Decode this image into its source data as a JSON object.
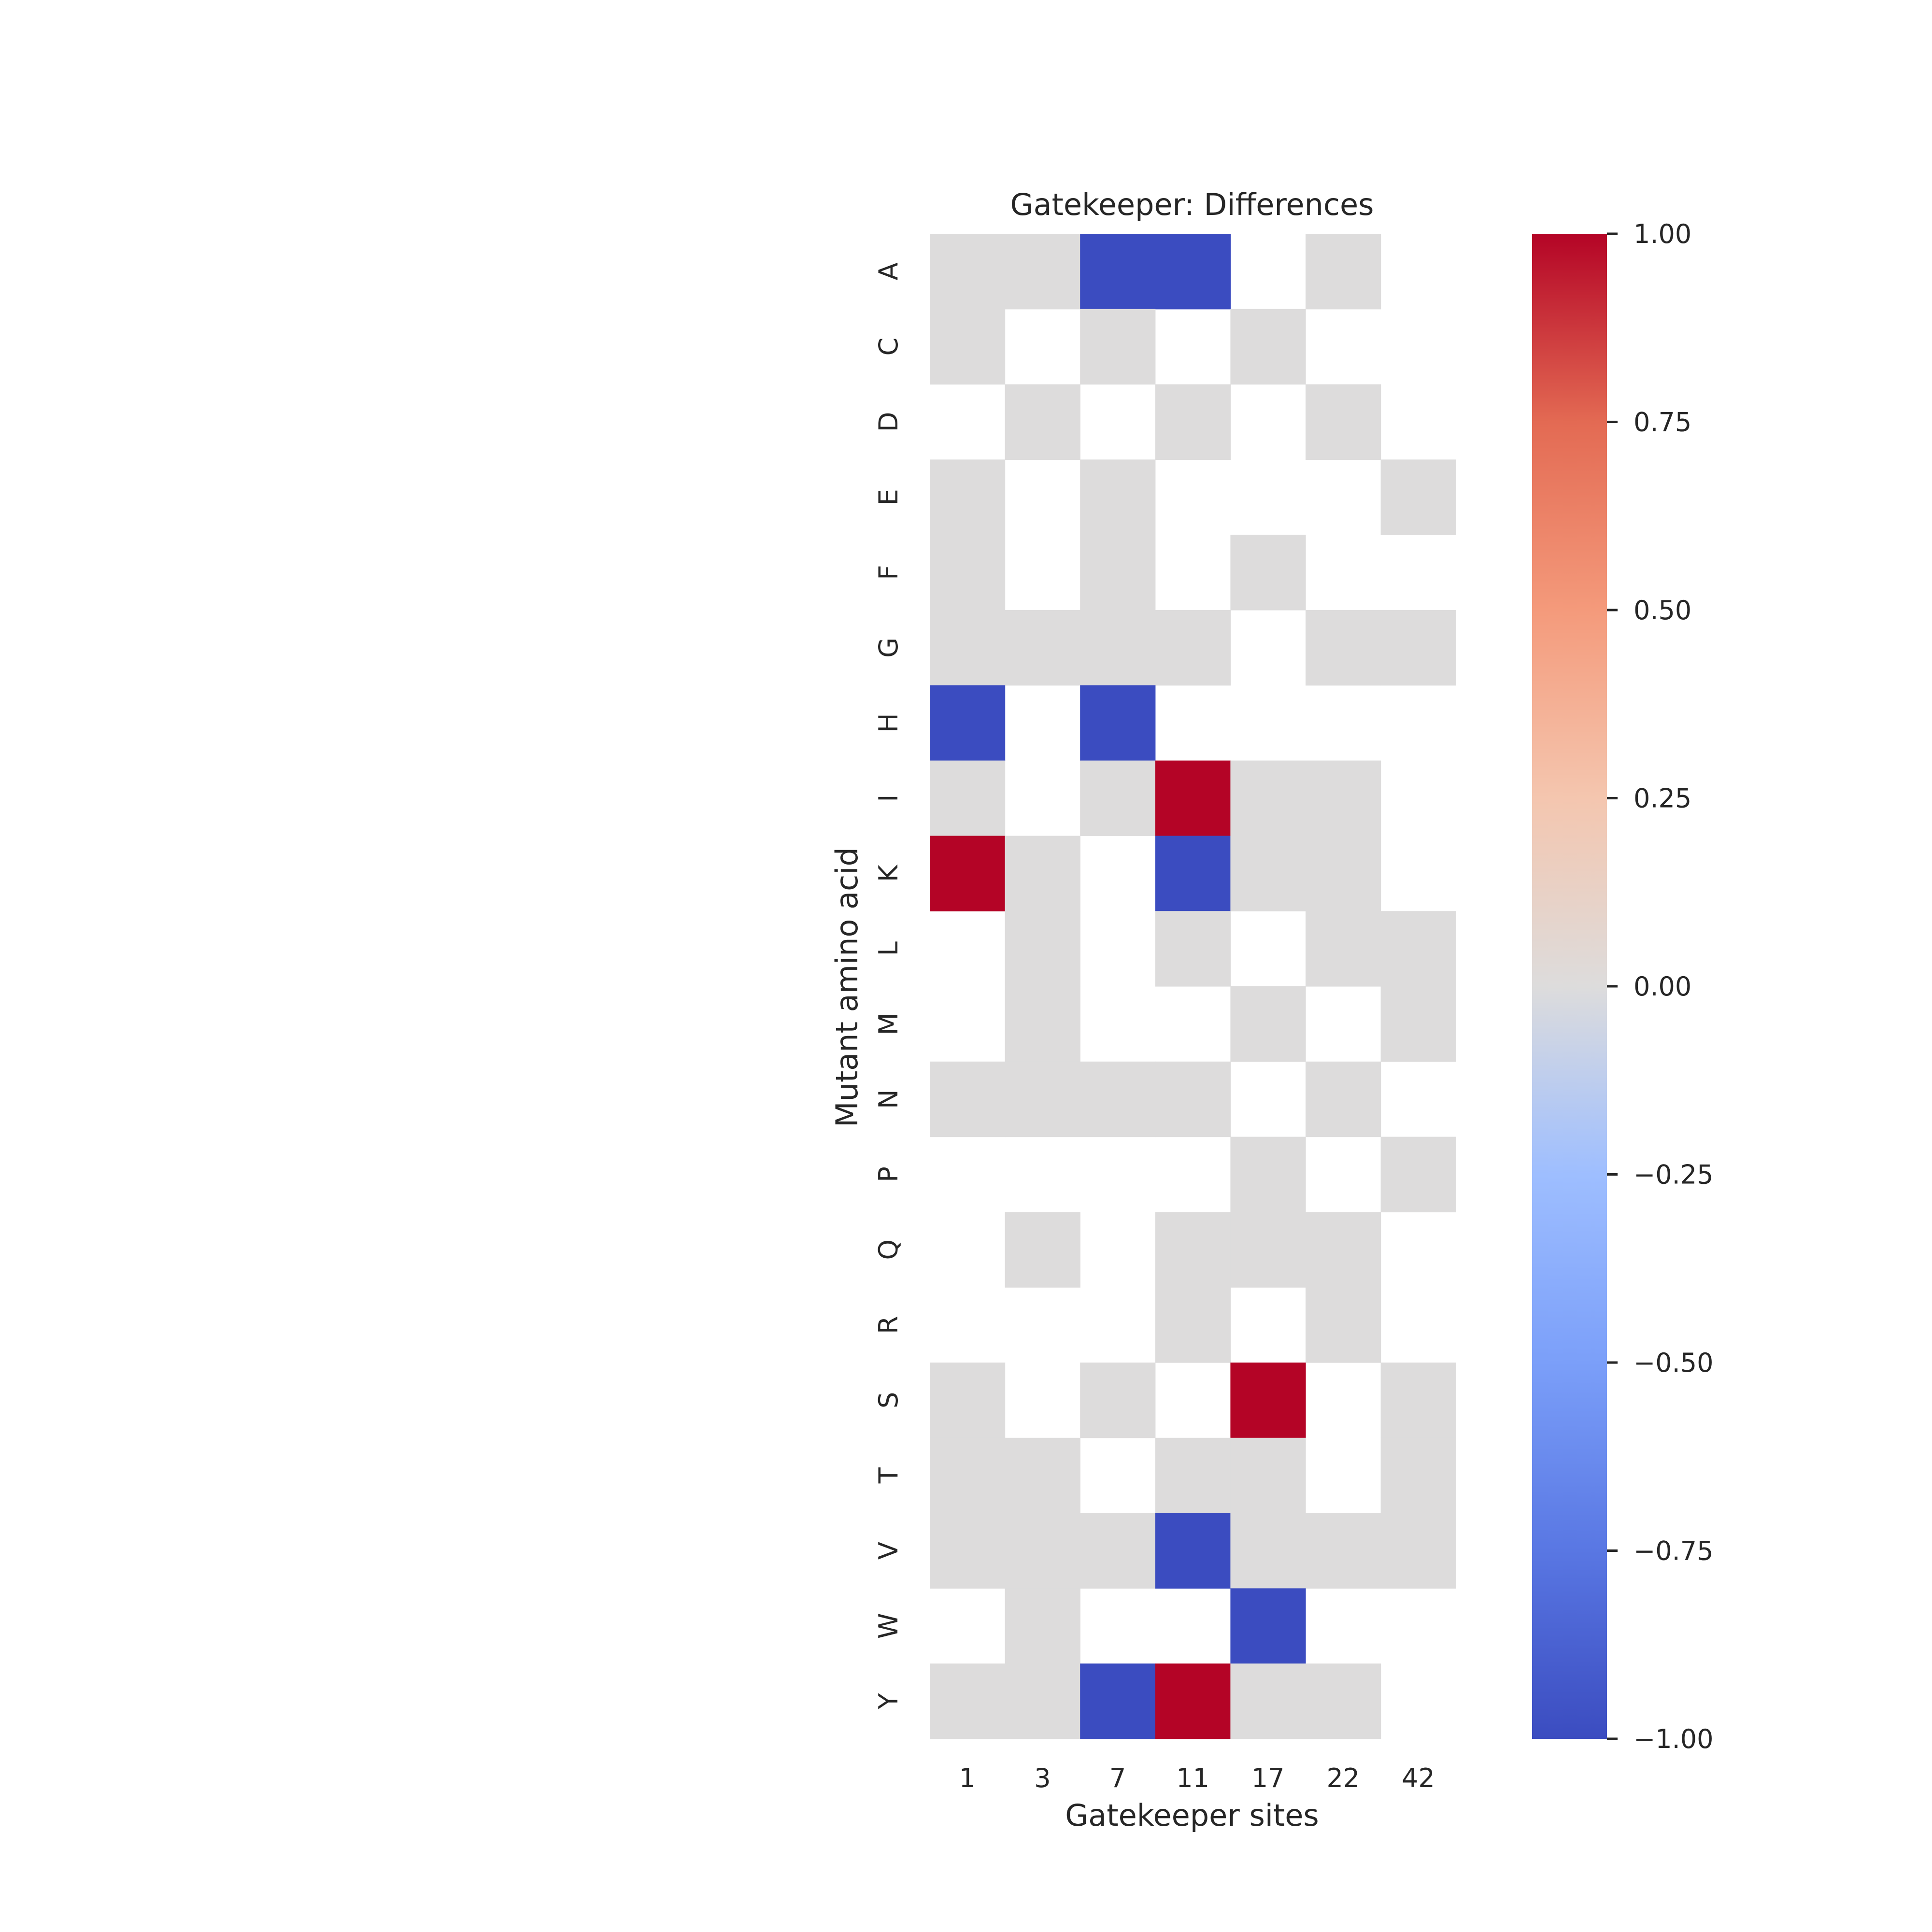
{
  "chart_data": {
    "type": "heatmap",
    "title": "Gatekeeper: Differences",
    "xlabel": "Gatekeeper sites",
    "ylabel": "Mutant amino acid",
    "x_categories": [
      "1",
      "3",
      "7",
      "11",
      "17",
      "22",
      "42"
    ],
    "y_categories": [
      "A",
      "C",
      "D",
      "E",
      "F",
      "G",
      "H",
      "I",
      "K",
      "L",
      "M",
      "N",
      "P",
      "Q",
      "R",
      "S",
      "T",
      "V",
      "W",
      "Y"
    ],
    "values": [
      [
        0,
        0,
        -1,
        -1,
        null,
        0,
        null
      ],
      [
        0,
        null,
        0,
        null,
        0,
        null,
        null
      ],
      [
        null,
        0,
        null,
        0,
        null,
        0,
        null
      ],
      [
        0,
        null,
        0,
        null,
        null,
        null,
        0
      ],
      [
        0,
        null,
        0,
        null,
        0,
        null,
        null
      ],
      [
        0,
        0,
        0,
        0,
        null,
        0,
        0
      ],
      [
        -1,
        null,
        -1,
        null,
        null,
        null,
        null
      ],
      [
        0,
        null,
        0,
        1,
        0,
        0,
        null
      ],
      [
        1,
        0,
        null,
        -1,
        0,
        0,
        null
      ],
      [
        null,
        0,
        null,
        0,
        null,
        0,
        0
      ],
      [
        null,
        0,
        null,
        null,
        0,
        null,
        0
      ],
      [
        0,
        0,
        0,
        0,
        null,
        0,
        null
      ],
      [
        null,
        null,
        null,
        null,
        0,
        null,
        0
      ],
      [
        null,
        0,
        null,
        0,
        0,
        0,
        null
      ],
      [
        null,
        null,
        null,
        0,
        null,
        0,
        null
      ],
      [
        0,
        null,
        0,
        null,
        1,
        null,
        0
      ],
      [
        0,
        0,
        null,
        0,
        0,
        null,
        0
      ],
      [
        0,
        0,
        0,
        -1,
        0,
        0,
        0
      ],
      [
        null,
        0,
        null,
        null,
        -1,
        null,
        null
      ],
      [
        0,
        0,
        -1,
        1,
        0,
        0,
        null
      ]
    ],
    "colorbar": {
      "colormap": "coolwarm",
      "vmin": -1.0,
      "vmax": 1.0,
      "ticks": [
        1.0,
        0.75,
        0.5,
        0.25,
        0.0,
        -0.25,
        -0.5,
        -0.75,
        -1.0
      ],
      "tick_labels": [
        "1.00",
        "0.75",
        "0.50",
        "0.25",
        "0.00",
        "−0.25",
        "−0.50",
        "−0.75",
        "−1.00"
      ]
    },
    "missing_cells": "blank",
    "grid": false
  }
}
